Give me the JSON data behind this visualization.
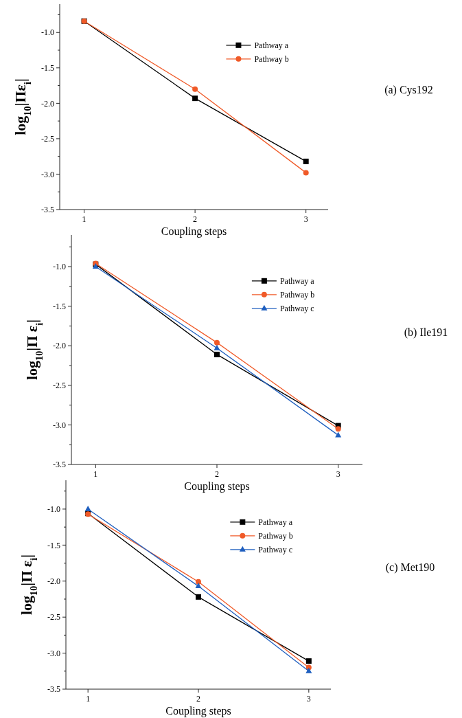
{
  "chart_data": [
    {
      "type": "line",
      "annotations": [
        "(a) Cys192"
      ],
      "xlabel": "Coupling steps",
      "ylabel": "log$_{10}$|Πε$_{i}$|",
      "x": [
        1,
        2,
        3
      ],
      "xlim": [
        0.78,
        3.2
      ],
      "xticks": [
        1,
        2,
        3
      ],
      "ylim": [
        -3.5,
        -0.6
      ],
      "yticks": [
        {
          "value": -3.5,
          "label": "-3.5"
        },
        {
          "value": -3.25,
          "label": null
        },
        {
          "value": -3.0,
          "label": "-3.0"
        },
        {
          "value": -2.75,
          "label": null
        },
        {
          "value": -2.5,
          "label": "-2.5"
        },
        {
          "value": -2.25,
          "label": null
        },
        {
          "value": -2.0,
          "label": "-2.0"
        },
        {
          "value": -1.75,
          "label": null
        },
        {
          "value": -1.5,
          "label": "-1.5"
        },
        {
          "value": -1.25,
          "label": null
        },
        {
          "value": -1.0,
          "label": "-1.0"
        },
        {
          "value": -0.75,
          "label": null
        }
      ],
      "legend": "top right",
      "series": [
        {
          "name": "Pathway a",
          "color": "#000000",
          "marker": "square",
          "values": [
            -0.84,
            -1.93,
            -2.82
          ]
        },
        {
          "name": "Pathway b",
          "color": "#f05a28",
          "marker": "circle",
          "values": [
            -0.84,
            -1.8,
            -2.98
          ]
        }
      ]
    },
    {
      "type": "line",
      "annotations": [
        "(b) Ile191"
      ],
      "xlabel": "Coupling steps",
      "ylabel": "log$_{10}$|Π ε$_{i}$|",
      "x": [
        1,
        2,
        3
      ],
      "xlim": [
        0.8,
        3.2
      ],
      "xticks": [
        1,
        2,
        3
      ],
      "ylim": [
        -3.5,
        -0.6
      ],
      "yticks": [
        {
          "value": -3.5,
          "label": "-3.5"
        },
        {
          "value": -3.25,
          "label": null
        },
        {
          "value": -3.0,
          "label": "-3.0"
        },
        {
          "value": -2.75,
          "label": null
        },
        {
          "value": -2.5,
          "label": "-2.5"
        },
        {
          "value": -2.25,
          "label": null
        },
        {
          "value": -2.0,
          "label": "-2.0"
        },
        {
          "value": -1.75,
          "label": null
        },
        {
          "value": -1.5,
          "label": "-1.5"
        },
        {
          "value": -1.25,
          "label": null
        },
        {
          "value": -1.0,
          "label": "-1.0"
        },
        {
          "value": -0.75,
          "label": null
        }
      ],
      "legend": "top right",
      "series": [
        {
          "name": "Pathway a",
          "color": "#000000",
          "marker": "square",
          "values": [
            -0.97,
            -2.11,
            -3.01
          ]
        },
        {
          "name": "Pathway b",
          "color": "#f05a28",
          "marker": "circle",
          "values": [
            -0.96,
            -1.96,
            -3.05
          ]
        },
        {
          "name": "Pathway c",
          "color": "#1f5fbf",
          "marker": "triangle",
          "values": [
            -1.0,
            -2.03,
            -3.13
          ]
        }
      ]
    },
    {
      "type": "line",
      "annotations": [
        "(c) Met190"
      ],
      "xlabel": "Coupling steps",
      "ylabel": "log$_{10}$|Π ε$_{i}$|",
      "x": [
        1,
        2,
        3
      ],
      "xlim": [
        0.8,
        3.2
      ],
      "xticks": [
        1,
        2,
        3
      ],
      "ylim": [
        -3.5,
        -0.6
      ],
      "yticks": [
        {
          "value": -3.5,
          "label": "-3.5"
        },
        {
          "value": -3.25,
          "label": null
        },
        {
          "value": -3.0,
          "label": "-3.0"
        },
        {
          "value": -2.75,
          "label": null
        },
        {
          "value": -2.5,
          "label": "-2.5"
        },
        {
          "value": -2.25,
          "label": null
        },
        {
          "value": -2.0,
          "label": "-2.0"
        },
        {
          "value": -1.75,
          "label": null
        },
        {
          "value": -1.5,
          "label": "-1.5"
        },
        {
          "value": -1.25,
          "label": null
        },
        {
          "value": -1.0,
          "label": "-1.0"
        },
        {
          "value": -0.75,
          "label": null
        }
      ],
      "legend": "top right",
      "series": [
        {
          "name": "Pathway a",
          "color": "#000000",
          "marker": "square",
          "values": [
            -1.06,
            -2.22,
            -3.11
          ]
        },
        {
          "name": "Pathway b",
          "color": "#f05a28",
          "marker": "circle",
          "values": [
            -1.07,
            -2.01,
            -3.2
          ]
        },
        {
          "name": "Pathway c",
          "color": "#1f5fbf",
          "marker": "triangle",
          "values": [
            -1.0,
            -2.07,
            -3.25
          ]
        }
      ]
    }
  ]
}
